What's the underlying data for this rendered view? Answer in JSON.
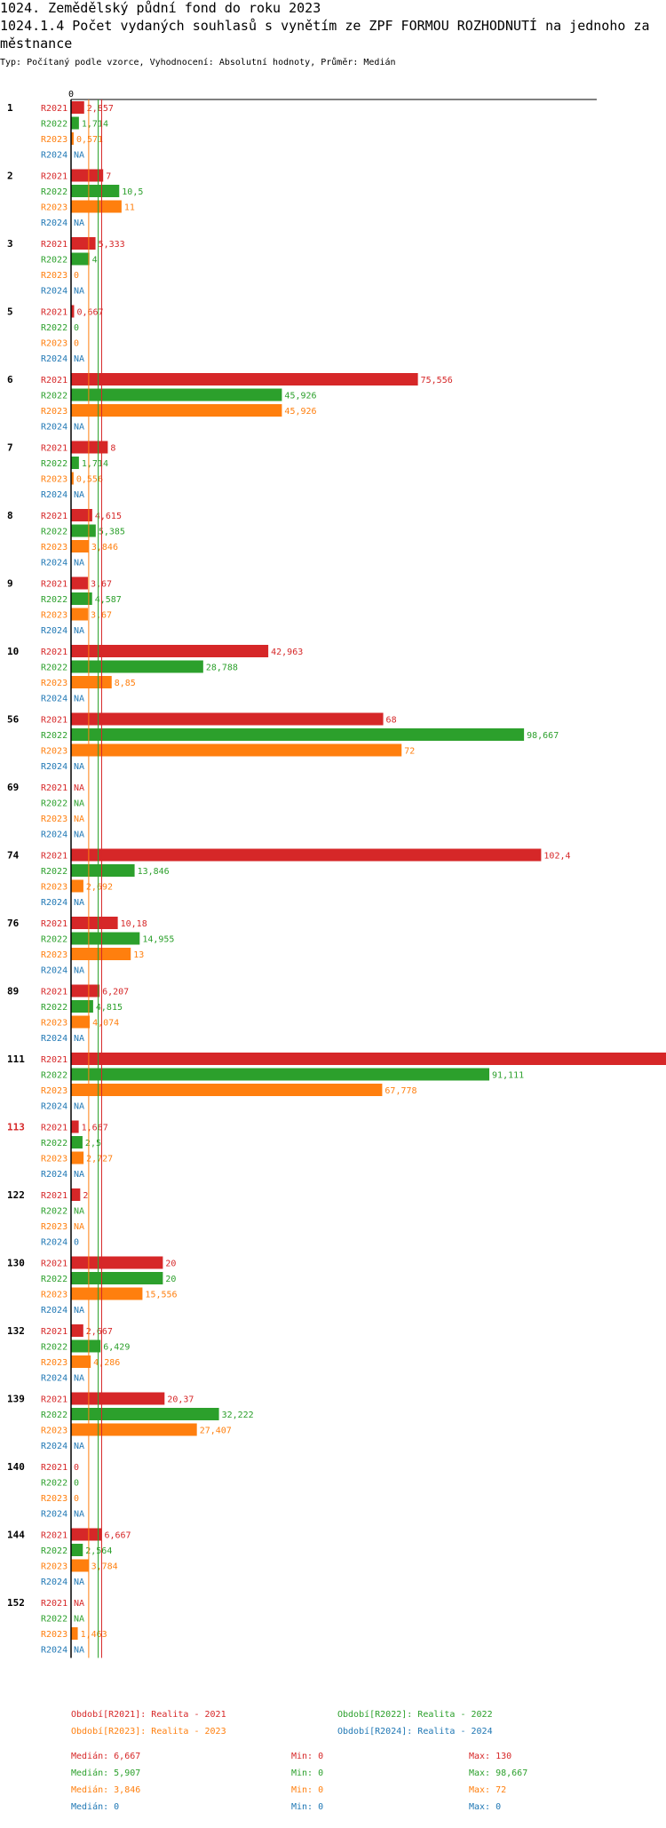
{
  "title_line1": "1024. Zemědělský půdní fond  do roku 2023",
  "title_line2": "1024.1.4 Počet vydaných souhlasů s vynětím ze ZPF FORMOU ROZHODNUTÍ na jednoho za",
  "title_line3": "městnance",
  "subtitle": "Typ: Počítaný podle vzorce, Vyhodnocení: Absolutní hodnoty, Průměr: Medián",
  "colors": {
    "R2021": "#d62728",
    "R2022": "#2ca02c",
    "R2023": "#ff7f0e",
    "R2024": "#1f77b4",
    "highlight": "#d62728"
  },
  "chart_data": {
    "type": "bar",
    "orientation": "horizontal",
    "axis_zero_label": "0",
    "xlim": [
      0,
      130
    ],
    "series_names": [
      "R2021",
      "R2022",
      "R2023",
      "R2024"
    ],
    "groups": [
      {
        "label": "1",
        "values": [
          "2,857",
          "1,714",
          "0,571",
          "NA"
        ]
      },
      {
        "label": "2",
        "values": [
          "7",
          "10,5",
          "11",
          "NA"
        ]
      },
      {
        "label": "3",
        "values": [
          "5,333",
          "4",
          "0",
          "NA"
        ]
      },
      {
        "label": "5",
        "values": [
          "0,667",
          "0",
          "0",
          "NA"
        ]
      },
      {
        "label": "6",
        "values": [
          "75,556",
          "45,926",
          "45,926",
          "NA"
        ]
      },
      {
        "label": "7",
        "values": [
          "8",
          "1,714",
          "0,556",
          "NA"
        ]
      },
      {
        "label": "8",
        "values": [
          "4,615",
          "5,385",
          "3,846",
          "NA"
        ]
      },
      {
        "label": "9",
        "values": [
          "3,67",
          "4,587",
          "3,67",
          "NA"
        ]
      },
      {
        "label": "10",
        "values": [
          "42,963",
          "28,788",
          "8,85",
          "NA"
        ]
      },
      {
        "label": "56",
        "values": [
          "68",
          "98,667",
          "72",
          "NA"
        ]
      },
      {
        "label": "69",
        "values": [
          "NA",
          "NA",
          "NA",
          "NA"
        ]
      },
      {
        "label": "74",
        "values": [
          "102,4",
          "13,846",
          "2,692",
          "NA"
        ]
      },
      {
        "label": "76",
        "values": [
          "10,18",
          "14,955",
          "13",
          "NA"
        ]
      },
      {
        "label": "89",
        "values": [
          "6,207",
          "4,815",
          "4,074",
          "NA"
        ]
      },
      {
        "label": "111",
        "values": [
          "130",
          "91,111",
          "67,778",
          "NA"
        ]
      },
      {
        "label": "113",
        "values": [
          "1,667",
          "2,5",
          "2,727",
          "NA"
        ],
        "highlight": true
      },
      {
        "label": "122",
        "values": [
          "2",
          "NA",
          "NA",
          "0"
        ]
      },
      {
        "label": "130",
        "values": [
          "20",
          "20",
          "15,556",
          "NA"
        ]
      },
      {
        "label": "132",
        "values": [
          "2,667",
          "6,429",
          "4,286",
          "NA"
        ]
      },
      {
        "label": "139",
        "values": [
          "20,37",
          "32,222",
          "27,407",
          "NA"
        ]
      },
      {
        "label": "140",
        "values": [
          "0",
          "0",
          "0",
          "NA"
        ]
      },
      {
        "label": "144",
        "values": [
          "6,667",
          "2,564",
          "3,784",
          "NA"
        ]
      },
      {
        "label": "152",
        "values": [
          "NA",
          "NA",
          "1,463",
          "NA"
        ]
      }
    ],
    "median_lines": {
      "R2021": 6.667,
      "R2022": 5.907,
      "R2023": 3.846,
      "R2024": 0
    }
  },
  "legend": [
    {
      "series": "R2021",
      "text": "Období[R2021]: Realita - 2021"
    },
    {
      "series": "R2022",
      "text": "Období[R2022]: Realita - 2022"
    },
    {
      "series": "R2023",
      "text": "Období[R2023]: Realita - 2023"
    },
    {
      "series": "R2024",
      "text": "Období[R2024]: Realita - 2024"
    }
  ],
  "stats": [
    {
      "series": "R2021",
      "median": "Medián: 6,667",
      "min": "Min: 0",
      "max": "Max: 130"
    },
    {
      "series": "R2022",
      "median": "Medián: 5,907",
      "min": "Min: 0",
      "max": "Max: 98,667"
    },
    {
      "series": "R2023",
      "median": "Medián: 3,846",
      "min": "Min: 0",
      "max": "Max: 72"
    },
    {
      "series": "R2024",
      "median": "Medián: 0",
      "min": "Min: 0",
      "max": "Max: 0"
    }
  ]
}
